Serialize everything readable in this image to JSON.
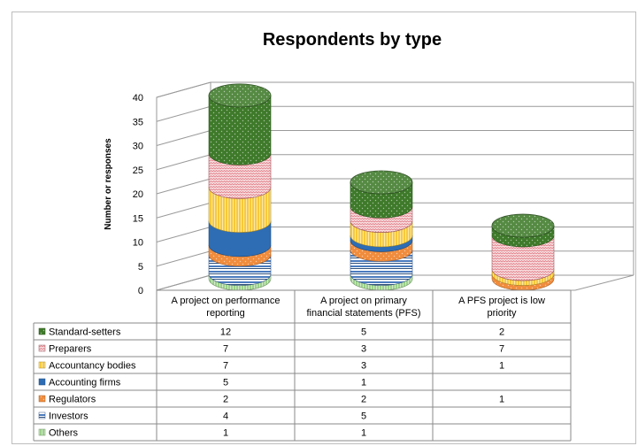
{
  "chart_data": {
    "type": "bar",
    "title": "Respondents by type",
    "xlabel": "",
    "ylabel": "Number or responses",
    "ylim": [
      0,
      40
    ],
    "yticks": [
      0,
      5,
      10,
      15,
      20,
      25,
      30,
      35,
      40
    ],
    "grid": true,
    "stacked": true,
    "legend_placement": "data table, left",
    "categories": [
      "A project on performance reporting",
      "A project on primary financial statements (PFS)",
      "A PFS project is low priority"
    ],
    "category_lines": [
      [
        "A project on performance",
        "reporting"
      ],
      [
        "A project on primary",
        "financial statements (PFS)"
      ],
      [
        "A PFS project is low",
        "priority"
      ]
    ],
    "series": [
      {
        "name": "Others",
        "values": [
          1,
          1,
          null
        ],
        "color": "#9bd18a",
        "pattern": "vertical-lines"
      },
      {
        "name": "Investors",
        "values": [
          4,
          5,
          null
        ],
        "color": "#4a7bbf",
        "pattern": "horizontal-lines"
      },
      {
        "name": "Regulators",
        "values": [
          2,
          2,
          1
        ],
        "color": "#f08c3c",
        "pattern": "dots"
      },
      {
        "name": "Accounting firms",
        "values": [
          5,
          1,
          null
        ],
        "color": "#2e6db4",
        "pattern": "solid"
      },
      {
        "name": "Accountancy bodies",
        "values": [
          7,
          3,
          1
        ],
        "color": "#f7c93c",
        "pattern": "vertical-lines"
      },
      {
        "name": "Preparers",
        "values": [
          7,
          3,
          7
        ],
        "color": "#e0848c",
        "pattern": "zigzag"
      },
      {
        "name": "Standard-setters",
        "values": [
          12,
          5,
          2
        ],
        "color": "#3e7a2a",
        "pattern": "dots"
      }
    ],
    "table_rows": [
      {
        "name": "Standard-setters",
        "cells": [
          "12",
          "5",
          "2"
        ]
      },
      {
        "name": "Preparers",
        "cells": [
          "7",
          "3",
          "7"
        ]
      },
      {
        "name": "Accountancy bodies",
        "cells": [
          "7",
          "3",
          "1"
        ]
      },
      {
        "name": "Accounting firms",
        "cells": [
          "5",
          "1",
          ""
        ]
      },
      {
        "name": "Regulators",
        "cells": [
          "2",
          "2",
          "1"
        ]
      },
      {
        "name": "Investors",
        "cells": [
          "4",
          "5",
          ""
        ]
      },
      {
        "name": "Others",
        "cells": [
          "1",
          "1",
          ""
        ]
      }
    ]
  }
}
